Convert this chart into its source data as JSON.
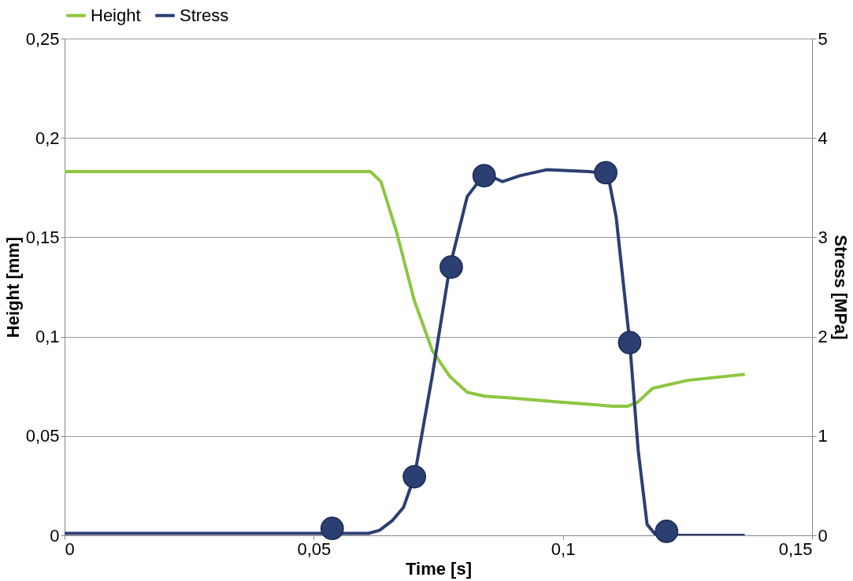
{
  "chart_data": {
    "type": "line",
    "xlabel": "Time [s]",
    "ylabel": "Height [mm]",
    "y2label": "Stress [MPa]",
    "xlim": [
      0,
      0.15
    ],
    "xticks": [
      0,
      {
        "value": 0.05,
        "label": "0,05"
      },
      {
        "value": 0.1,
        "label": "0,1"
      },
      {
        "value": 0.15,
        "label": "0,15"
      }
    ],
    "ylim": [
      0,
      0.25
    ],
    "yticks": [
      0,
      {
        "value": 0.05,
        "label": "0,05"
      },
      {
        "value": 0.1,
        "label": "0,1"
      },
      {
        "value": 0.15,
        "label": "0,15"
      },
      {
        "value": 0.2,
        "label": "0,2"
      },
      {
        "value": 0.25,
        "label": "0,25"
      }
    ],
    "y2lim": [
      0,
      5
    ],
    "y2ticks": [
      0,
      1,
      2,
      3,
      4,
      5
    ],
    "grid": "y",
    "legend": "top",
    "series": [
      {
        "name": "Height",
        "color": "#8cc63f",
        "x": [
          0,
          0.0614,
          0.0635,
          0.0667,
          0.0702,
          0.0738,
          0.0773,
          0.0808,
          0.0843,
          0.09,
          0.1,
          0.11,
          0.113,
          0.115,
          0.118,
          0.125,
          0.1365
        ],
        "values": [
          0.183,
          0.183,
          0.178,
          0.152,
          0.118,
          0.093,
          0.08,
          0.072,
          0.07,
          0.069,
          0.067,
          0.065,
          0.065,
          0.067,
          0.074,
          0.078,
          0.081
        ]
      },
      {
        "name": "Stress",
        "color": "#2b3f73",
        "axis": "y2",
        "x": [
          0,
          0.061,
          0.0632,
          0.0658,
          0.068,
          0.0702,
          0.0738,
          0.0773,
          0.0808,
          0.0843,
          0.0879,
          0.0914,
          0.0967,
          0.1054,
          0.109,
          0.1107,
          0.1134,
          0.1151,
          0.1169,
          0.1187,
          0.1365
        ],
        "values": [
          0.02,
          0.02,
          0.05,
          0.15,
          0.28,
          0.59,
          1.61,
          2.7,
          3.41,
          3.64,
          3.56,
          3.62,
          3.68,
          3.66,
          3.64,
          3.2,
          1.95,
          0.86,
          0.11,
          0,
          0
        ]
      },
      {
        "type": "scatter",
        "color": "#2b3f73",
        "axis": "y2",
        "marker": "circle",
        "x": [
          0.0537,
          0.0702,
          0.0776,
          0.0842,
          0.1086,
          0.1134,
          0.1208
        ],
        "values": [
          0.07,
          0.59,
          2.7,
          3.62,
          3.65,
          1.94,
          0.04
        ]
      }
    ]
  }
}
